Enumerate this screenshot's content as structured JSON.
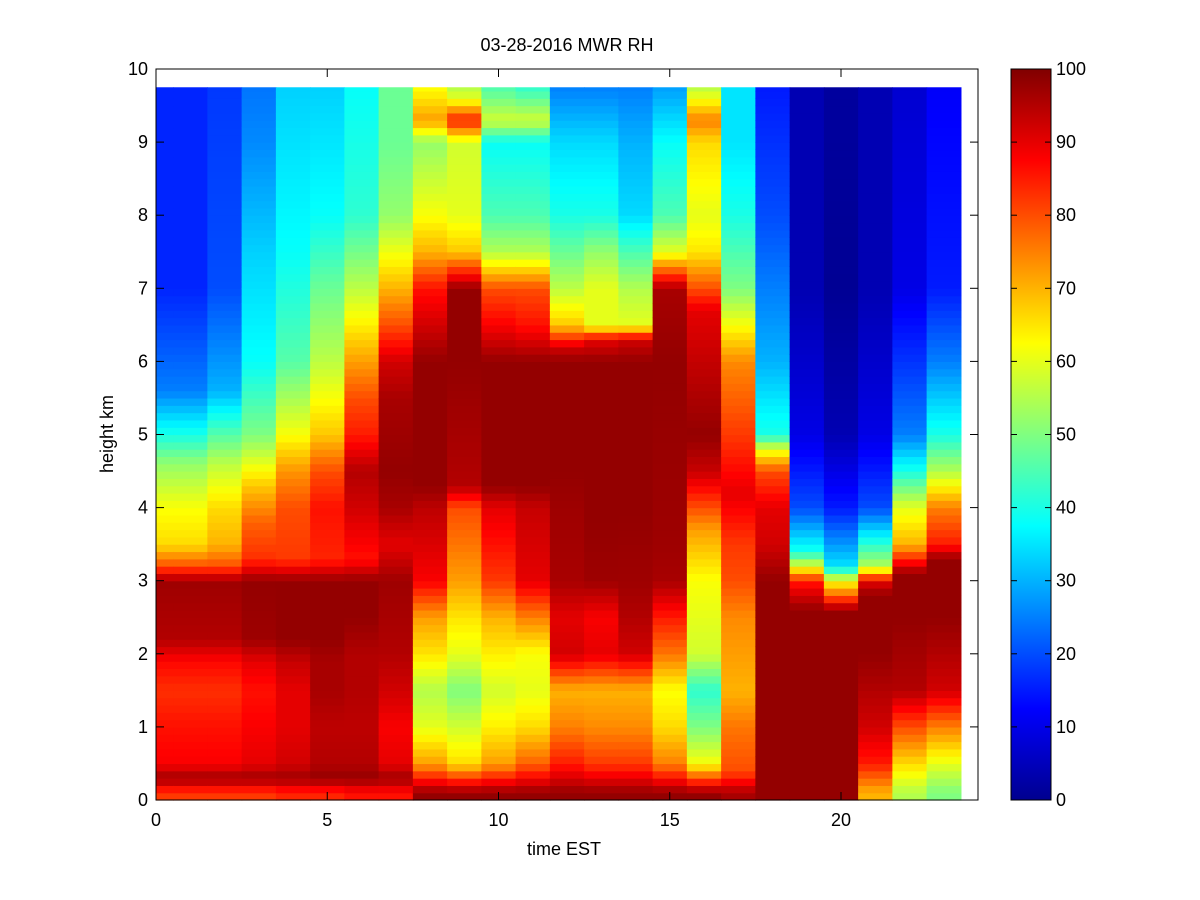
{
  "chart_data": {
    "type": "heatmap",
    "title": "03-28-2016 MWR RH",
    "xlabel": "time EST",
    "ylabel": "height km",
    "xlim": [
      0,
      24
    ],
    "ylim": [
      0,
      10
    ],
    "x_ticks": [
      0,
      5,
      10,
      15,
      20
    ],
    "y_ticks": [
      0,
      1,
      2,
      3,
      4,
      5,
      6,
      7,
      8,
      9,
      10
    ],
    "colorbar": {
      "colormap": "jet",
      "range": [
        0,
        100
      ],
      "ticks": [
        0,
        10,
        20,
        30,
        40,
        50,
        60,
        70,
        80,
        90,
        100
      ]
    },
    "data_extent": {
      "x": [
        0,
        23.5
      ],
      "y": [
        0,
        9.75
      ]
    },
    "x": [
      0,
      1,
      2,
      3,
      4,
      5,
      6,
      7,
      8,
      9,
      10,
      11,
      12,
      13,
      14,
      15,
      16,
      17,
      18,
      19,
      20,
      21,
      22,
      23
    ],
    "profiles": [
      [
        [
          0.1,
          82
        ],
        [
          0.3,
          97
        ],
        [
          0.5,
          88
        ],
        [
          1,
          86
        ],
        [
          1.5,
          83
        ],
        [
          1.9,
          87
        ],
        [
          2.2,
          95
        ],
        [
          3,
          97
        ],
        [
          3.2,
          80
        ],
        [
          3.5,
          66
        ],
        [
          4,
          62
        ],
        [
          4.6,
          52
        ],
        [
          5,
          40
        ],
        [
          5.6,
          25
        ],
        [
          7,
          16
        ],
        [
          9.75,
          16
        ]
      ],
      [
        [
          0.1,
          82
        ],
        [
          0.3,
          97
        ],
        [
          0.5,
          88
        ],
        [
          1,
          86
        ],
        [
          1.5,
          83
        ],
        [
          1.9,
          87
        ],
        [
          2.2,
          95
        ],
        [
          3,
          97
        ],
        [
          3.2,
          80
        ],
        [
          3.5,
          66
        ],
        [
          4,
          62
        ],
        [
          4.6,
          52
        ],
        [
          5,
          40
        ],
        [
          5.6,
          25
        ],
        [
          7,
          16
        ],
        [
          9.75,
          16
        ]
      ],
      [
        [
          0.1,
          82
        ],
        [
          0.3,
          97
        ],
        [
          0.5,
          88
        ],
        [
          1,
          86
        ],
        [
          1.5,
          83
        ],
        [
          1.9,
          87
        ],
        [
          2.2,
          95
        ],
        [
          3,
          97
        ],
        [
          3.2,
          80
        ],
        [
          3.5,
          70
        ],
        [
          4,
          66
        ],
        [
          4.6,
          56
        ],
        [
          5,
          46
        ],
        [
          5.6,
          30
        ],
        [
          7,
          20
        ],
        [
          9.75,
          18
        ]
      ],
      [
        [
          0.1,
          82
        ],
        [
          0.3,
          97
        ],
        [
          0.5,
          90
        ],
        [
          1,
          88
        ],
        [
          1.5,
          86
        ],
        [
          1.9,
          90
        ],
        [
          2.2,
          97
        ],
        [
          3,
          98
        ],
        [
          3.3,
          83
        ],
        [
          3.8,
          78
        ],
        [
          4.3,
          68
        ],
        [
          5,
          50
        ],
        [
          6,
          38
        ],
        [
          7.5,
          33
        ],
        [
          9,
          26
        ],
        [
          9.75,
          24
        ]
      ],
      [
        [
          0.1,
          84
        ],
        [
          0.3,
          97
        ],
        [
          0.5,
          92
        ],
        [
          1,
          90
        ],
        [
          1.5,
          90
        ],
        [
          1.9,
          93
        ],
        [
          2.2,
          98
        ],
        [
          3,
          98
        ],
        [
          3.3,
          82
        ],
        [
          4,
          80
        ],
        [
          4.5,
          73
        ],
        [
          5,
          62
        ],
        [
          6,
          46
        ],
        [
          7.5,
          38
        ],
        [
          9.75,
          33
        ]
      ],
      [
        [
          0.1,
          84
        ],
        [
          0.3,
          98
        ],
        [
          0.5,
          95
        ],
        [
          1,
          94
        ],
        [
          1.5,
          96
        ],
        [
          1.9,
          96
        ],
        [
          2.2,
          98
        ],
        [
          3,
          98
        ],
        [
          3.3,
          84
        ],
        [
          4,
          86
        ],
        [
          4.5,
          80
        ],
        [
          5,
          68
        ],
        [
          6,
          56
        ],
        [
          7,
          48
        ],
        [
          8,
          38
        ],
        [
          9.75,
          33
        ]
      ],
      [
        [
          0.1,
          86
        ],
        [
          0.3,
          98
        ],
        [
          0.5,
          95
        ],
        [
          1,
          94
        ],
        [
          1.5,
          95
        ],
        [
          2,
          95
        ],
        [
          2.5,
          98
        ],
        [
          3,
          98
        ],
        [
          3.3,
          86
        ],
        [
          4,
          92
        ],
        [
          4.5,
          95
        ],
        [
          5,
          85
        ],
        [
          5.5,
          80
        ],
        [
          6,
          72
        ],
        [
          7,
          56
        ],
        [
          8,
          42
        ],
        [
          9.75,
          38
        ]
      ],
      [
        [
          0.1,
          86
        ],
        [
          0.3,
          97
        ],
        [
          0.5,
          90
        ],
        [
          1,
          88
        ],
        [
          1.5,
          92
        ],
        [
          2,
          95
        ],
        [
          3,
          97
        ],
        [
          3.5,
          90
        ],
        [
          4,
          96
        ],
        [
          4.5,
          98
        ],
        [
          5.5,
          96
        ],
        [
          6,
          92
        ],
        [
          6.5,
          80
        ],
        [
          7,
          70
        ],
        [
          8,
          52
        ],
        [
          9,
          48
        ],
        [
          9.75,
          48
        ]
      ],
      [
        [
          0.1,
          98
        ],
        [
          0.5,
          72
        ],
        [
          1,
          60
        ],
        [
          1.5,
          55
        ],
        [
          2,
          65
        ],
        [
          2.5,
          72
        ],
        [
          3,
          88
        ],
        [
          4,
          94
        ],
        [
          4.3,
          98
        ],
        [
          6,
          98
        ],
        [
          6.5,
          92
        ],
        [
          7,
          86
        ],
        [
          7.5,
          70
        ],
        [
          8,
          62
        ],
        [
          9,
          52
        ],
        [
          9.3,
          72
        ],
        [
          9.75,
          62
        ]
      ],
      [
        [
          0.1,
          98
        ],
        [
          0.5,
          66
        ],
        [
          1,
          58
        ],
        [
          1.5,
          50
        ],
        [
          2,
          60
        ],
        [
          2.5,
          65
        ],
        [
          3,
          72
        ],
        [
          4,
          80
        ],
        [
          4.3,
          95
        ],
        [
          6,
          98
        ],
        [
          7,
          98
        ],
        [
          7.5,
          68
        ],
        [
          8,
          60
        ],
        [
          9,
          58
        ],
        [
          9.3,
          85
        ],
        [
          9.6,
          60
        ],
        [
          9.75,
          55
        ]
      ],
      [
        [
          0.1,
          98
        ],
        [
          0.5,
          72
        ],
        [
          1,
          64
        ],
        [
          1.5,
          58
        ],
        [
          2,
          64
        ],
        [
          2.5,
          70
        ],
        [
          3,
          82
        ],
        [
          4,
          90
        ],
        [
          4.3,
          98
        ],
        [
          6,
          98
        ],
        [
          6.5,
          88
        ],
        [
          7,
          80
        ],
        [
          7.5,
          55
        ],
        [
          8,
          45
        ],
        [
          9,
          38
        ],
        [
          9.3,
          58
        ],
        [
          9.75,
          45
        ]
      ],
      [
        [
          0.1,
          98
        ],
        [
          0.5,
          78
        ],
        [
          1,
          66
        ],
        [
          1.5,
          60
        ],
        [
          2,
          62
        ],
        [
          2.5,
          75
        ],
        [
          3,
          90
        ],
        [
          4,
          93
        ],
        [
          4.3,
          98
        ],
        [
          6,
          98
        ],
        [
          6.5,
          86
        ],
        [
          7,
          80
        ],
        [
          7.5,
          55
        ],
        [
          8,
          45
        ],
        [
          9,
          38
        ],
        [
          9.3,
          58
        ],
        [
          9.75,
          42
        ]
      ],
      [
        [
          0.1,
          98
        ],
        [
          0.5,
          85
        ],
        [
          1,
          75
        ],
        [
          1.5,
          70
        ],
        [
          2,
          92
        ],
        [
          2.5,
          90
        ],
        [
          3,
          96
        ],
        [
          4,
          97
        ],
        [
          4.5,
          98
        ],
        [
          6,
          98
        ],
        [
          6.2,
          92
        ],
        [
          6.5,
          68
        ],
        [
          7,
          56
        ],
        [
          8,
          40
        ],
        [
          9,
          34
        ],
        [
          9.75,
          25
        ]
      ],
      [
        [
          0.1,
          98
        ],
        [
          0.5,
          82
        ],
        [
          1,
          74
        ],
        [
          1.5,
          70
        ],
        [
          2,
          90
        ],
        [
          2.5,
          88
        ],
        [
          3,
          97
        ],
        [
          3.8,
          98
        ],
        [
          6,
          98
        ],
        [
          6.3,
          90
        ],
        [
          6.5,
          60
        ],
        [
          7,
          60
        ],
        [
          7.5,
          52
        ],
        [
          8,
          40
        ],
        [
          9,
          34
        ],
        [
          9.75,
          25
        ]
      ],
      [
        [
          0.1,
          98
        ],
        [
          0.5,
          82
        ],
        [
          1,
          74
        ],
        [
          1.5,
          70
        ],
        [
          2,
          92
        ],
        [
          2.5,
          95
        ],
        [
          3,
          97
        ],
        [
          4,
          98
        ],
        [
          6,
          98
        ],
        [
          6.3,
          92
        ],
        [
          6.5,
          60
        ],
        [
          7,
          55
        ],
        [
          7.5,
          45
        ],
        [
          8,
          34
        ],
        [
          9,
          30
        ],
        [
          9.75,
          25
        ]
      ],
      [
        [
          0.1,
          98
        ],
        [
          0.5,
          75
        ],
        [
          1,
          66
        ],
        [
          1.5,
          62
        ],
        [
          2,
          76
        ],
        [
          2.5,
          85
        ],
        [
          3,
          96
        ],
        [
          3.5,
          97
        ],
        [
          6,
          98
        ],
        [
          7,
          96
        ],
        [
          7.5,
          60
        ],
        [
          8,
          45
        ],
        [
          9,
          38
        ],
        [
          9.75,
          28
        ]
      ],
      [
        [
          0.1,
          98
        ],
        [
          0.5,
          62
        ],
        [
          1,
          50
        ],
        [
          1.5,
          42
        ],
        [
          2,
          58
        ],
        [
          3,
          62
        ],
        [
          3.7,
          72
        ],
        [
          4.5,
          93
        ],
        [
          5,
          98
        ],
        [
          6.7,
          90
        ],
        [
          7,
          80
        ],
        [
          7.5,
          65
        ],
        [
          8,
          60
        ],
        [
          9,
          66
        ],
        [
          9.3,
          75
        ],
        [
          9.75,
          55
        ]
      ],
      [
        [
          0.1,
          96
        ],
        [
          0.4,
          80
        ],
        [
          1,
          76
        ],
        [
          1.5,
          70
        ],
        [
          2,
          72
        ],
        [
          2.5,
          74
        ],
        [
          3,
          80
        ],
        [
          3.5,
          82
        ],
        [
          4.2,
          90
        ],
        [
          5,
          82
        ],
        [
          6,
          74
        ],
        [
          6.5,
          62
        ],
        [
          7,
          50
        ],
        [
          8,
          40
        ],
        [
          9,
          35
        ],
        [
          9.75,
          35
        ]
      ],
      [
        [
          0.1,
          98
        ],
        [
          3,
          98
        ],
        [
          3.5,
          92
        ],
        [
          4,
          90
        ],
        [
          4.5,
          80
        ],
        [
          4.8,
          60
        ],
        [
          5,
          40
        ],
        [
          6,
          30
        ],
        [
          7,
          25
        ],
        [
          8,
          20
        ],
        [
          9.75,
          15
        ]
      ],
      [
        [
          0.1,
          98
        ],
        [
          2.6,
          98
        ],
        [
          2.8,
          92
        ],
        [
          3,
          85
        ],
        [
          3.2,
          60
        ],
        [
          3.4,
          40
        ],
        [
          4,
          20
        ],
        [
          5,
          10
        ],
        [
          7,
          5
        ],
        [
          9.75,
          5
        ]
      ],
      [
        [
          0.1,
          98
        ],
        [
          2.6,
          98
        ],
        [
          2.8,
          78
        ],
        [
          3,
          62
        ],
        [
          3.2,
          35
        ],
        [
          4,
          15
        ],
        [
          5,
          5
        ],
        [
          7,
          2
        ],
        [
          9.75,
          3
        ]
      ],
      [
        [
          0.1,
          70
        ],
        [
          0.5,
          85
        ],
        [
          1,
          92
        ],
        [
          2,
          98
        ],
        [
          2.8,
          98
        ],
        [
          3,
          90
        ],
        [
          3.2,
          55
        ],
        [
          4,
          20
        ],
        [
          5,
          10
        ],
        [
          7,
          5
        ],
        [
          9.75,
          5
        ]
      ],
      [
        [
          0.1,
          55
        ],
        [
          0.5,
          66
        ],
        [
          1,
          80
        ],
        [
          1.5,
          95
        ],
        [
          2.5,
          98
        ],
        [
          3.1,
          98
        ],
        [
          3.5,
          70
        ],
        [
          4,
          60
        ],
        [
          4.5,
          40
        ],
        [
          5,
          25
        ],
        [
          7,
          10
        ],
        [
          9.75,
          8
        ]
      ],
      [
        [
          0.1,
          50
        ],
        [
          0.5,
          60
        ],
        [
          1,
          75
        ],
        [
          1.5,
          92
        ],
        [
          2.5,
          98
        ],
        [
          3.3,
          98
        ],
        [
          3.5,
          85
        ],
        [
          4,
          75
        ],
        [
          4.5,
          55
        ],
        [
          5,
          40
        ],
        [
          6,
          25
        ],
        [
          7,
          15
        ],
        [
          9.75,
          12
        ]
      ]
    ]
  }
}
